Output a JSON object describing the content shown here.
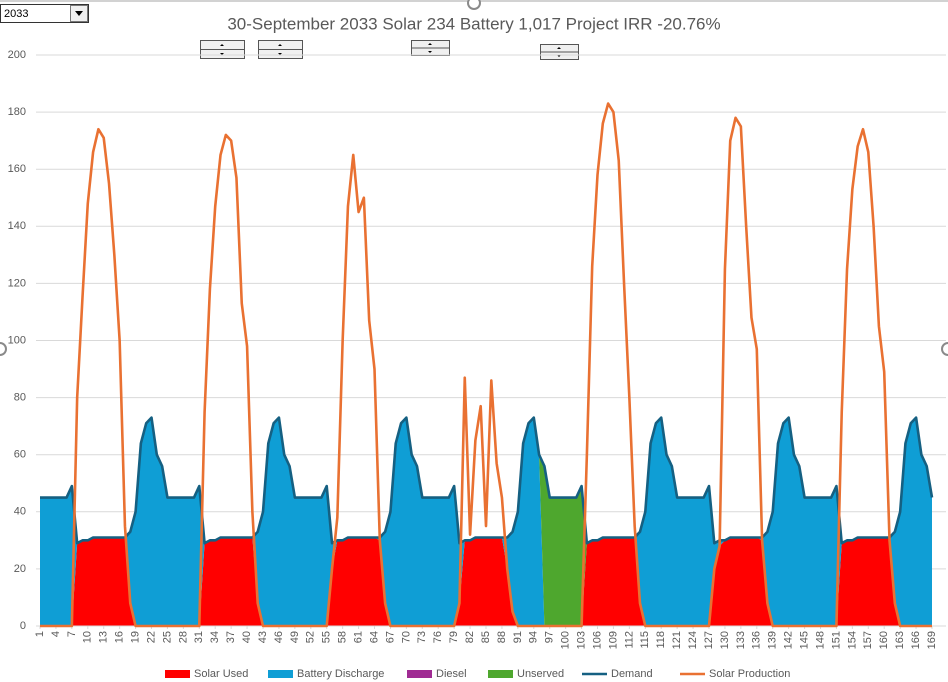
{
  "dropdown": {
    "value": "2033"
  },
  "chart_data": {
    "type": "area",
    "stacked": true,
    "title": "30-September 2033 Solar  234  Battery  1,017  Project IRR -20.76%",
    "x": [
      1,
      2,
      3,
      4,
      5,
      6,
      7,
      8,
      9,
      10,
      11,
      12,
      13,
      14,
      15,
      16,
      17,
      18,
      19,
      20,
      21,
      22,
      23,
      24,
      25,
      26,
      27,
      28,
      29,
      30,
      31,
      32,
      33,
      34,
      35,
      36,
      37,
      38,
      39,
      40,
      41,
      42,
      43,
      44,
      45,
      46,
      47,
      48,
      49,
      50,
      51,
      52,
      53,
      54,
      55,
      56,
      57,
      58,
      59,
      60,
      61,
      62,
      63,
      64,
      65,
      66,
      67,
      68,
      69,
      70,
      71,
      72,
      73,
      74,
      75,
      76,
      77,
      78,
      79,
      80,
      81,
      82,
      83,
      84,
      85,
      86,
      87,
      88,
      89,
      90,
      91,
      92,
      93,
      94,
      95,
      96,
      97,
      98,
      99,
      100,
      101,
      102,
      103,
      104,
      105,
      106,
      107,
      108,
      109,
      110,
      111,
      112,
      113,
      114,
      115,
      116,
      117,
      118,
      119,
      120,
      121,
      122,
      123,
      124,
      125,
      126,
      127,
      128,
      129,
      130,
      131,
      132,
      133,
      134,
      135,
      136,
      137,
      138,
      139,
      140,
      141,
      142,
      143,
      144,
      145,
      146,
      147,
      148,
      149,
      150,
      151,
      152,
      153,
      154,
      155,
      156,
      157,
      158,
      159,
      160,
      161,
      162,
      163,
      164,
      165,
      166,
      167,
      168,
      169
    ],
    "xlim": [
      1,
      169
    ],
    "xticks": [
      1,
      4,
      7,
      10,
      13,
      16,
      19,
      22,
      25,
      28,
      31,
      34,
      37,
      40,
      43,
      46,
      49,
      52,
      55,
      58,
      61,
      64,
      67,
      70,
      73,
      76,
      79,
      82,
      85,
      88,
      91,
      94,
      97,
      100,
      103,
      106,
      109,
      112,
      115,
      118,
      121,
      124,
      127,
      130,
      133,
      136,
      139,
      142,
      145,
      148,
      151,
      154,
      157,
      160,
      163,
      166,
      169
    ],
    "ylim": [
      0,
      200
    ],
    "yticks": [
      0,
      20,
      40,
      60,
      80,
      100,
      120,
      140,
      160,
      180,
      200
    ],
    "grid": true,
    "legend": "bottom",
    "series": [
      {
        "name": "Solar Used",
        "type": "area",
        "color": "#ff0000",
        "values": [
          0,
          0,
          0,
          0,
          0,
          0,
          0,
          29,
          30,
          30,
          31,
          31,
          31,
          31,
          31,
          31,
          31,
          8,
          0,
          0,
          0,
          0,
          0,
          0,
          0,
          0,
          0,
          0,
          0,
          0,
          0,
          29,
          30,
          30,
          31,
          31,
          31,
          31,
          31,
          31,
          31,
          8,
          0,
          0,
          0,
          0,
          0,
          0,
          0,
          0,
          0,
          0,
          0,
          0,
          0,
          20,
          30,
          30,
          31,
          31,
          31,
          31,
          31,
          31,
          30,
          8,
          0,
          0,
          0,
          0,
          0,
          0,
          0,
          0,
          0,
          0,
          0,
          0,
          0,
          8,
          30,
          30,
          31,
          31,
          31,
          31,
          31,
          31,
          20,
          5,
          0,
          0,
          0,
          0,
          0,
          0,
          0,
          0,
          0,
          0,
          0,
          0,
          0,
          29,
          30,
          30,
          31,
          31,
          31,
          31,
          31,
          31,
          31,
          8,
          0,
          0,
          0,
          0,
          0,
          0,
          0,
          0,
          0,
          0,
          0,
          0,
          0,
          20,
          28,
          30,
          31,
          31,
          31,
          31,
          31,
          31,
          30,
          8,
          0,
          0,
          0,
          0,
          0,
          0,
          0,
          0,
          0,
          0,
          0,
          0,
          0,
          29,
          30,
          30,
          31,
          31,
          31,
          31,
          31,
          31,
          31,
          8,
          0,
          0,
          0,
          0,
          0,
          0,
          0
        ]
      },
      {
        "name": "Battery Discharge",
        "type": "area",
        "color": "#0f9ed5",
        "values": [
          45,
          45,
          45,
          45,
          45,
          45,
          49,
          0,
          0,
          0,
          0,
          0,
          0,
          0,
          0,
          0,
          0,
          25,
          40,
          64,
          71,
          73,
          60,
          56,
          45,
          45,
          45,
          45,
          45,
          45,
          49,
          0,
          0,
          0,
          0,
          0,
          0,
          0,
          0,
          0,
          0,
          25,
          40,
          64,
          71,
          73,
          60,
          56,
          45,
          45,
          45,
          45,
          45,
          45,
          49,
          9,
          0,
          0,
          0,
          0,
          0,
          0,
          0,
          0,
          1,
          25,
          40,
          64,
          71,
          73,
          60,
          56,
          45,
          45,
          45,
          45,
          45,
          45,
          49,
          21,
          0,
          0,
          0,
          0,
          0,
          0,
          0,
          0,
          11,
          28,
          40,
          64,
          71,
          73,
          60,
          0,
          0,
          0,
          0,
          0,
          0,
          0,
          0,
          0,
          0,
          0,
          0,
          0,
          0,
          0,
          0,
          0,
          0,
          25,
          40,
          64,
          71,
          73,
          60,
          56,
          45,
          45,
          45,
          45,
          45,
          45,
          49,
          9,
          2,
          0,
          0,
          0,
          0,
          0,
          0,
          0,
          1,
          25,
          40,
          64,
          71,
          73,
          60,
          56,
          45,
          45,
          45,
          45,
          45,
          45,
          49,
          0,
          0,
          0,
          0,
          0,
          0,
          0,
          0,
          0,
          0,
          25,
          40,
          64,
          71,
          73,
          60,
          56,
          45
        ]
      },
      {
        "name": "Diesel",
        "type": "area",
        "color": "#a02b93",
        "values": [
          0,
          0,
          0,
          0,
          0,
          0,
          0,
          0,
          0,
          0,
          0,
          0,
          0,
          0,
          0,
          0,
          0,
          0,
          0,
          0,
          0,
          0,
          0,
          0,
          0,
          0,
          0,
          0,
          0,
          0,
          0,
          0,
          0,
          0,
          0,
          0,
          0,
          0,
          0,
          0,
          0,
          0,
          0,
          0,
          0,
          0,
          0,
          0,
          0,
          0,
          0,
          0,
          0,
          0,
          0,
          0,
          0,
          0,
          0,
          0,
          0,
          0,
          0,
          0,
          0,
          0,
          0,
          0,
          0,
          0,
          0,
          0,
          0,
          0,
          0,
          0,
          0,
          0,
          0,
          0,
          0,
          0,
          0,
          0,
          0,
          0,
          0,
          0,
          0,
          0,
          0,
          0,
          0,
          0,
          0,
          0,
          0,
          0,
          0,
          0,
          0,
          0,
          0,
          0,
          0,
          0,
          0,
          0,
          0,
          0,
          0,
          0,
          0,
          0,
          0,
          0,
          0,
          0,
          0,
          0,
          0,
          0,
          0,
          0,
          0,
          0,
          0,
          0,
          0,
          0,
          0,
          0,
          0,
          0,
          0,
          0,
          0,
          0,
          0,
          0,
          0,
          0,
          0,
          0,
          0,
          0,
          0,
          0,
          0,
          0,
          0,
          0,
          0,
          0,
          0,
          0,
          0,
          0,
          0,
          0,
          0,
          0,
          0,
          0,
          0,
          0,
          0,
          0,
          0
        ]
      },
      {
        "name": "Unserved",
        "type": "area",
        "color": "#4ea72e",
        "values": [
          0,
          0,
          0,
          0,
          0,
          0,
          0,
          0,
          0,
          0,
          0,
          0,
          0,
          0,
          0,
          0,
          0,
          0,
          0,
          0,
          0,
          0,
          0,
          0,
          0,
          0,
          0,
          0,
          0,
          0,
          0,
          0,
          0,
          0,
          0,
          0,
          0,
          0,
          0,
          0,
          0,
          0,
          0,
          0,
          0,
          0,
          0,
          0,
          0,
          0,
          0,
          0,
          0,
          0,
          0,
          0,
          0,
          0,
          0,
          0,
          0,
          0,
          0,
          0,
          0,
          0,
          0,
          0,
          0,
          0,
          0,
          0,
          0,
          0,
          0,
          0,
          0,
          0,
          0,
          0,
          0,
          0,
          0,
          0,
          0,
          0,
          0,
          0,
          0,
          0,
          0,
          0,
          0,
          0,
          0,
          56,
          45,
          45,
          45,
          45,
          45,
          45,
          49,
          0,
          0,
          0,
          0,
          0,
          0,
          0,
          0,
          0,
          0,
          0,
          0,
          0,
          0,
          0,
          0,
          0,
          0,
          0,
          0,
          0,
          0,
          0,
          0,
          0,
          0,
          0,
          0,
          0,
          0,
          0,
          0,
          0,
          0,
          0,
          0,
          0,
          0,
          0,
          0,
          0,
          0,
          0,
          0,
          0,
          0,
          0,
          0,
          0,
          0,
          0,
          0,
          0,
          0,
          0,
          0,
          0,
          0,
          0,
          0,
          0,
          0,
          0,
          0,
          0,
          0
        ]
      },
      {
        "name": "Demand",
        "type": "line",
        "color": "#156082",
        "values": [
          45,
          45,
          45,
          45,
          45,
          45,
          49,
          29,
          30,
          30,
          31,
          31,
          31,
          31,
          31,
          31,
          31,
          33,
          40,
          64,
          71,
          73,
          60,
          56,
          45,
          45,
          45,
          45,
          45,
          45,
          49,
          29,
          30,
          30,
          31,
          31,
          31,
          31,
          31,
          31,
          31,
          33,
          40,
          64,
          71,
          73,
          60,
          56,
          45,
          45,
          45,
          45,
          45,
          45,
          49,
          29,
          30,
          30,
          31,
          31,
          31,
          31,
          31,
          31,
          31,
          33,
          40,
          64,
          71,
          73,
          60,
          56,
          45,
          45,
          45,
          45,
          45,
          45,
          49,
          29,
          30,
          30,
          31,
          31,
          31,
          31,
          31,
          31,
          31,
          33,
          40,
          64,
          71,
          73,
          60,
          56,
          45,
          45,
          45,
          45,
          45,
          45,
          49,
          29,
          30,
          30,
          31,
          31,
          31,
          31,
          31,
          31,
          31,
          33,
          40,
          64,
          71,
          73,
          60,
          56,
          45,
          45,
          45,
          45,
          45,
          45,
          49,
          29,
          30,
          30,
          31,
          31,
          31,
          31,
          31,
          31,
          31,
          33,
          40,
          64,
          71,
          73,
          60,
          56,
          45,
          45,
          45,
          45,
          45,
          45,
          49,
          29,
          30,
          30,
          31,
          31,
          31,
          31,
          31,
          31,
          31,
          33,
          40,
          64,
          71,
          73,
          60,
          56,
          45
        ]
      },
      {
        "name": "Solar Production",
        "type": "line",
        "color": "#e97132",
        "values": [
          0,
          0,
          0,
          0,
          0,
          0,
          0,
          80,
          115,
          148,
          166,
          174,
          171,
          155,
          130,
          100,
          35,
          8,
          0,
          0,
          0,
          0,
          0,
          0,
          0,
          0,
          0,
          0,
          0,
          0,
          0,
          75,
          118,
          147,
          165,
          172,
          170,
          157,
          113,
          98,
          40,
          8,
          0,
          0,
          0,
          0,
          0,
          0,
          0,
          0,
          0,
          0,
          0,
          0,
          0,
          20,
          38,
          100,
          147,
          165,
          145,
          150,
          107,
          90,
          30,
          8,
          0,
          0,
          0,
          0,
          0,
          0,
          0,
          0,
          0,
          0,
          0,
          0,
          0,
          8,
          87,
          32,
          65,
          77,
          35,
          86,
          57,
          45,
          20,
          5,
          0,
          0,
          0,
          0,
          0,
          0,
          0,
          0,
          0,
          0,
          0,
          0,
          0,
          60,
          126,
          158,
          176,
          183,
          180,
          163,
          120,
          80,
          35,
          8,
          0,
          0,
          0,
          0,
          0,
          0,
          0,
          0,
          0,
          0,
          0,
          0,
          0,
          20,
          28,
          125,
          170,
          178,
          175,
          140,
          108,
          97,
          30,
          8,
          0,
          0,
          0,
          0,
          0,
          0,
          0,
          0,
          0,
          0,
          0,
          0,
          0,
          75,
          125,
          153,
          168,
          174,
          166,
          140,
          105,
          89,
          30,
          8,
          0,
          0,
          0,
          0,
          0,
          0,
          0
        ]
      }
    ]
  }
}
